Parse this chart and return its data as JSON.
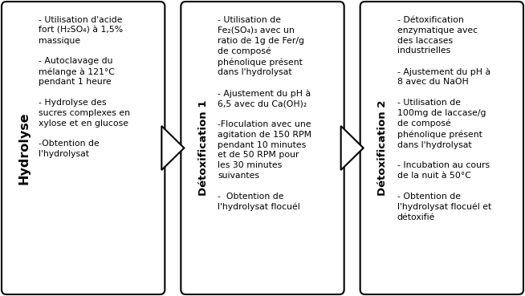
{
  "bg_color": "#ffffff",
  "border_color": "#000000",
  "text_color": "#000000",
  "fig_width": 6.54,
  "fig_height": 3.69,
  "dpi": 100,
  "font_size_body": 7.8,
  "font_size_label1": 11.5,
  "font_size_label23": 9.5,
  "box1_label": "Hydrolyse",
  "box2_label": "Détoxification 1",
  "box3_label": "Détoxification 2",
  "box1_body": "- Utilisation d'acide\nfort (H₂SO₄) à 1,5%\nmassique\n\n- Autoclavage du\nmélange à 121°C\npendant 1 heure\n\n- Hydrolyse des\nsucres complexes en\nxylose et en glucose\n\n-Obtention de\nl'hydrolysat",
  "box2_body": "- Utilisation de\nFe₂(SO₄)₃ avec un\nratio de 1g de Fer/g\nde composé\nphénolique présent\ndans l'hydrolysat\n\n- Ajustement du pH à\n6,5 avec du Ca(OH)₂\n\n-Floculation avec une\nagitation de 150 RPM\npendant 10 minutes\net de 50 RPM pour\nles 30 minutes\nsuivantes\n\n-  Obtention de\nl'hydrolysat flocuél",
  "box3_body": "- Détoxification\nenzymatique avec\ndes laccases\nindustrielles\n\n- Ajustement du pH à\n8 avec du NaOH\n\n- Utilisation de\n100mg de laccase/g\nde composé\nphénolique présent\ndans l'hydrolysat\n\n- Incubation au cours\nde la nuit à 50°C\n\n- Obtention de\nl'hydrolysat flocuél et\ndétoxifié"
}
